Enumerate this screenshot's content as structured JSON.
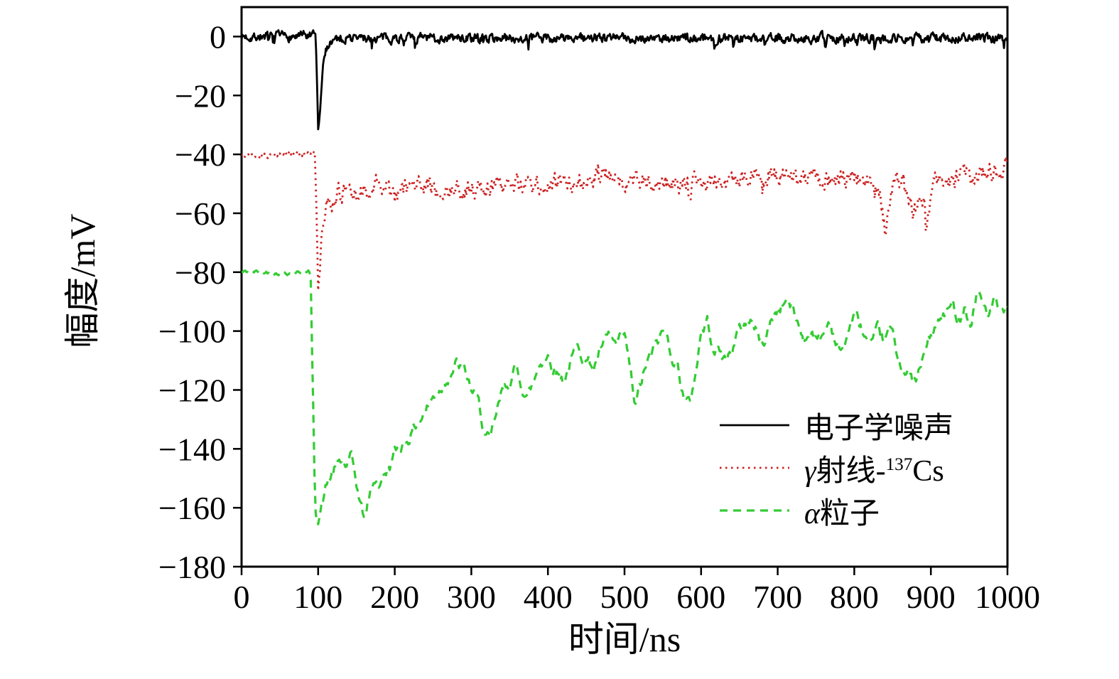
{
  "legend": {
    "items": [
      {
        "sym": "",
        "text": "电子学噪声",
        "sup": "",
        "suffix": ""
      },
      {
        "sym": "γ",
        "text": "射线-",
        "sup": "137",
        "suffix": "Cs"
      },
      {
        "sym": "α",
        "text": "粒子",
        "sup": "",
        "suffix": ""
      }
    ]
  },
  "chart_data": {
    "type": "line",
    "title": "",
    "xlabel": "时间/ns",
    "ylabel": "幅度/mV",
    "xlim": [
      0,
      1000
    ],
    "ylim": [
      -180,
      10
    ],
    "xticks": [
      0,
      100,
      200,
      300,
      400,
      500,
      600,
      700,
      800,
      900,
      1000
    ],
    "yticks": [
      0,
      -20,
      -40,
      -60,
      -80,
      -100,
      -120,
      -140,
      -160,
      -180
    ],
    "grid": false,
    "legend_position": "lower right",
    "series": [
      {
        "id": "noise",
        "name": "电子学噪声",
        "color": "#000000",
        "dash": "",
        "width": 2.8,
        "points": 1100,
        "seed": 7,
        "noise_amp": 1.2,
        "noise_smooth": 0.5,
        "spike_prob": 0.015,
        "spike_depth": 4,
        "spike_decay": 0.5,
        "quiet_until": null,
        "quiet_scale": 1,
        "baseline": 0,
        "pulse_min": -32,
        "pulse_time": 100,
        "anchors": [
          [
            0,
            0
          ],
          [
            96.5,
            0
          ],
          [
            98.5,
            -14
          ],
          [
            100,
            -32
          ],
          [
            102,
            -28
          ],
          [
            104,
            -18
          ],
          [
            107,
            -9
          ],
          [
            111,
            -4
          ],
          [
            116,
            -1.5
          ],
          [
            125,
            -0.5
          ],
          [
            1000,
            -0.5
          ]
        ]
      },
      {
        "id": "gamma-cs137",
        "name": "γ射线-137Cs",
        "color": "#cc2020",
        "dash": "2.5 5.5",
        "width": 2.8,
        "points": 900,
        "seed": 13,
        "noise_amp": 3.0,
        "noise_smooth": 0.6,
        "spike_prob": 0.006,
        "spike_depth": 8,
        "spike_decay": 0.7,
        "quiet_until": 95,
        "quiet_scale": 0.3,
        "baseline": -40,
        "pulse_min": -87,
        "pulse_time": 100,
        "anchors": [
          [
            0,
            -40
          ],
          [
            96,
            -40
          ],
          [
            98,
            -62
          ],
          [
            100,
            -87
          ],
          [
            102,
            -80
          ],
          [
            105,
            -68
          ],
          [
            109,
            -60
          ],
          [
            115,
            -56
          ],
          [
            125,
            -53
          ],
          [
            150,
            -54
          ],
          [
            175,
            -51
          ],
          [
            200,
            -52
          ],
          [
            250,
            -51
          ],
          [
            300,
            -52
          ],
          [
            350,
            -50
          ],
          [
            400,
            -51
          ],
          [
            450,
            -48
          ],
          [
            470,
            -45
          ],
          [
            500,
            -50
          ],
          [
            550,
            -49
          ],
          [
            600,
            -50
          ],
          [
            650,
            -48
          ],
          [
            700,
            -47
          ],
          [
            750,
            -49
          ],
          [
            800,
            -48
          ],
          [
            833,
            -50
          ],
          [
            840,
            -66
          ],
          [
            848,
            -51
          ],
          [
            865,
            -49
          ],
          [
            878,
            -60
          ],
          [
            887,
            -51
          ],
          [
            897,
            -58
          ],
          [
            907,
            -49
          ],
          [
            950,
            -47
          ],
          [
            1000,
            -45
          ]
        ]
      },
      {
        "id": "alpha",
        "name": "α粒子",
        "color": "#33cc33",
        "dash": "11 8",
        "width": 3.2,
        "points": 620,
        "seed": 42,
        "noise_amp": 3.5,
        "noise_smooth": 0.75,
        "spike_prob": 0,
        "spike_depth": 0,
        "spike_decay": 0,
        "quiet_until": 90,
        "quiet_scale": 0.3,
        "baseline": -80,
        "pulse_min": -165,
        "pulse_time": 100,
        "anchors": [
          [
            0,
            -80
          ],
          [
            90,
            -80
          ],
          [
            93,
            -120
          ],
          [
            96,
            -160
          ],
          [
            100,
            -163
          ],
          [
            106,
            -157
          ],
          [
            112,
            -152
          ],
          [
            120,
            -148
          ],
          [
            128,
            -145
          ],
          [
            136,
            -146
          ],
          [
            143,
            -144
          ],
          [
            150,
            -152
          ],
          [
            156,
            -160
          ],
          [
            161,
            -164
          ],
          [
            167,
            -156
          ],
          [
            174,
            -150
          ],
          [
            182,
            -152
          ],
          [
            190,
            -147
          ],
          [
            200,
            -142
          ],
          [
            210,
            -138
          ],
          [
            222,
            -134
          ],
          [
            232,
            -130
          ],
          [
            242,
            -126
          ],
          [
            252,
            -122
          ],
          [
            262,
            -118
          ],
          [
            272,
            -113
          ],
          [
            280,
            -111
          ],
          [
            290,
            -114
          ],
          [
            300,
            -120
          ],
          [
            310,
            -126
          ],
          [
            318,
            -135
          ],
          [
            325,
            -139
          ],
          [
            332,
            -130
          ],
          [
            340,
            -122
          ],
          [
            350,
            -117
          ],
          [
            358,
            -113
          ],
          [
            366,
            -118
          ],
          [
            374,
            -122
          ],
          [
            382,
            -117
          ],
          [
            390,
            -110
          ],
          [
            400,
            -108
          ],
          [
            410,
            -113
          ],
          [
            420,
            -116
          ],
          [
            430,
            -110
          ],
          [
            440,
            -106
          ],
          [
            450,
            -109
          ],
          [
            460,
            -112
          ],
          [
            470,
            -106
          ],
          [
            480,
            -103
          ],
          [
            490,
            -106
          ],
          [
            500,
            -103
          ],
          [
            508,
            -115
          ],
          [
            514,
            -127
          ],
          [
            520,
            -120
          ],
          [
            528,
            -112
          ],
          [
            536,
            -108
          ],
          [
            545,
            -103
          ],
          [
            552,
            -100
          ],
          [
            560,
            -106
          ],
          [
            570,
            -112
          ],
          [
            578,
            -122
          ],
          [
            585,
            -126
          ],
          [
            592,
            -115
          ],
          [
            600,
            -100
          ],
          [
            608,
            -97
          ],
          [
            616,
            -104
          ],
          [
            624,
            -107
          ],
          [
            632,
            -110
          ],
          [
            640,
            -106
          ],
          [
            648,
            -101
          ],
          [
            656,
            -98
          ],
          [
            664,
            -95
          ],
          [
            672,
            -100
          ],
          [
            680,
            -105
          ],
          [
            688,
            -99
          ],
          [
            696,
            -94
          ],
          [
            704,
            -91
          ],
          [
            712,
            -89
          ],
          [
            720,
            -93
          ],
          [
            728,
            -99
          ],
          [
            736,
            -103
          ],
          [
            744,
            -98
          ],
          [
            752,
            -104
          ],
          [
            760,
            -101
          ],
          [
            768,
            -96
          ],
          [
            776,
            -103
          ],
          [
            784,
            -108
          ],
          [
            792,
            -100
          ],
          [
            800,
            -94
          ],
          [
            808,
            -99
          ],
          [
            816,
            -103
          ],
          [
            824,
            -107
          ],
          [
            832,
            -101
          ],
          [
            840,
            -104
          ],
          [
            848,
            -100
          ],
          [
            856,
            -108
          ],
          [
            864,
            -112
          ],
          [
            872,
            -116
          ],
          [
            880,
            -118
          ],
          [
            888,
            -112
          ],
          [
            896,
            -104
          ],
          [
            904,
            -100
          ],
          [
            912,
            -97
          ],
          [
            920,
            -94
          ],
          [
            928,
            -92
          ],
          [
            936,
            -95
          ],
          [
            944,
            -90
          ],
          [
            952,
            -98
          ],
          [
            960,
            -86
          ],
          [
            968,
            -91
          ],
          [
            976,
            -94
          ],
          [
            984,
            -90
          ],
          [
            992,
            -96
          ],
          [
            1000,
            -95
          ]
        ]
      }
    ]
  }
}
